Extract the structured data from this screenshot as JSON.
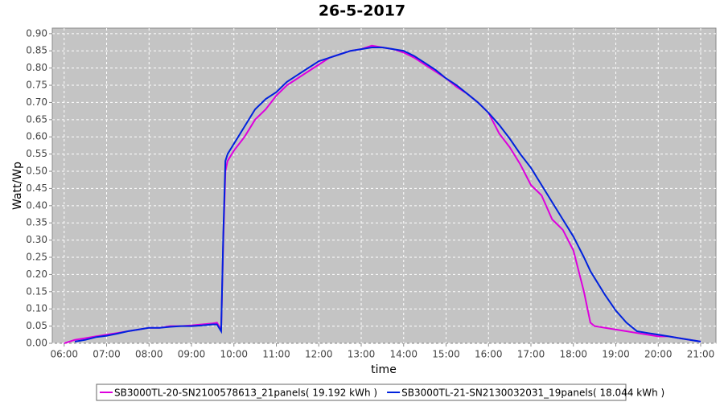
{
  "chart_data": {
    "type": "line",
    "title": "26-5-2017",
    "x_label": "time",
    "y_label": "Watt/Wp",
    "x": [
      6.0,
      6.25,
      6.5,
      6.75,
      7.0,
      7.25,
      7.5,
      7.75,
      8.0,
      8.25,
      8.5,
      8.75,
      9.0,
      9.25,
      9.5,
      9.6,
      9.7,
      9.75,
      9.8,
      9.85,
      10.0,
      10.25,
      10.5,
      10.75,
      11.0,
      11.25,
      11.5,
      11.75,
      12.0,
      12.25,
      12.5,
      12.75,
      13.0,
      13.25,
      13.5,
      13.75,
      14.0,
      14.25,
      14.5,
      14.75,
      15.0,
      15.25,
      15.5,
      15.75,
      16.0,
      16.25,
      16.5,
      16.75,
      17.0,
      17.25,
      17.5,
      17.75,
      18.0,
      18.25,
      18.4,
      18.5,
      18.75,
      19.0,
      19.25,
      19.5,
      19.75,
      20.0,
      20.25,
      20.5,
      20.75,
      21.0
    ],
    "series": [
      {
        "name": "SB3000TL-20-SN2100578613_21panels( 19.192 kWh )",
        "color": "#dd00dd",
        "values": [
          0.0,
          0.01,
          0.015,
          0.02,
          0.025,
          0.03,
          0.035,
          0.04,
          0.045,
          0.045,
          0.05,
          0.05,
          0.052,
          0.055,
          0.058,
          0.06,
          0.04,
          0.3,
          0.5,
          0.53,
          0.56,
          0.6,
          0.65,
          0.68,
          0.72,
          0.75,
          0.77,
          0.79,
          0.81,
          0.83,
          0.84,
          0.85,
          0.855,
          0.865,
          0.86,
          0.855,
          0.845,
          0.83,
          0.81,
          0.79,
          0.77,
          0.745,
          0.725,
          0.7,
          0.67,
          0.61,
          0.57,
          0.52,
          0.46,
          0.43,
          0.36,
          0.33,
          0.27,
          0.15,
          0.06,
          0.05,
          0.045,
          0.04,
          0.035,
          0.03,
          0.025,
          0.02,
          0.02,
          0.015,
          0.01,
          0.005
        ]
      },
      {
        "name": "SB3000TL-21-SN2130032031_19panels( 18.044 kWh )",
        "color": "#0022dd",
        "values": [
          null,
          0.005,
          0.01,
          0.018,
          0.022,
          0.028,
          0.035,
          0.04,
          0.045,
          0.045,
          0.048,
          0.05,
          0.05,
          0.052,
          0.055,
          0.055,
          0.035,
          0.32,
          0.53,
          0.55,
          0.58,
          0.63,
          0.68,
          0.71,
          0.73,
          0.76,
          0.78,
          0.8,
          0.82,
          0.83,
          0.84,
          0.85,
          0.855,
          0.86,
          0.86,
          0.855,
          0.85,
          0.835,
          0.815,
          0.795,
          0.77,
          0.75,
          0.725,
          0.7,
          0.67,
          0.635,
          0.595,
          0.55,
          0.51,
          0.46,
          0.41,
          0.36,
          0.31,
          0.25,
          0.21,
          0.19,
          0.14,
          0.095,
          0.06,
          0.035,
          0.03,
          0.025,
          0.02,
          0.015,
          0.01,
          0.005
        ]
      }
    ],
    "xlim": [
      5.72,
      21.36
    ],
    "ylim": [
      0,
      0.916
    ],
    "grid": true,
    "xticks": [
      {
        "value": 6,
        "label": "06:00"
      },
      {
        "value": 7,
        "label": "07:00"
      },
      {
        "value": 8,
        "label": "08:00"
      },
      {
        "value": 9,
        "label": "09:00"
      },
      {
        "value": 10,
        "label": "10:00"
      },
      {
        "value": 11,
        "label": "11:00"
      },
      {
        "value": 12,
        "label": "12:00"
      },
      {
        "value": 13,
        "label": "13:00"
      },
      {
        "value": 14,
        "label": "14:00"
      },
      {
        "value": 15,
        "label": "15:00"
      },
      {
        "value": 16,
        "label": "16:00"
      },
      {
        "value": 17,
        "label": "17:00"
      },
      {
        "value": 18,
        "label": "18:00"
      },
      {
        "value": 19,
        "label": "19:00"
      },
      {
        "value": 20,
        "label": "20:00"
      },
      {
        "value": 21,
        "label": "21:00"
      }
    ],
    "yticks": [
      {
        "value": 0,
        "label": "0.00"
      },
      {
        "value": 0.05,
        "label": "0.05"
      },
      {
        "value": 0.1,
        "label": "0.10"
      },
      {
        "value": 0.15,
        "label": "0.15"
      },
      {
        "value": 0.2,
        "label": "0.20"
      },
      {
        "value": 0.25,
        "label": "0.25"
      },
      {
        "value": 0.3,
        "label": "0.30"
      },
      {
        "value": 0.35,
        "label": "0.35"
      },
      {
        "value": 0.4,
        "label": "0.40"
      },
      {
        "value": 0.45,
        "label": "0.45"
      },
      {
        "value": 0.5,
        "label": "0.50"
      },
      {
        "value": 0.55,
        "label": "0.55"
      },
      {
        "value": 0.6,
        "label": "0.60"
      },
      {
        "value": 0.65,
        "label": "0.65"
      },
      {
        "value": 0.7,
        "label": "0.70"
      },
      {
        "value": 0.75,
        "label": "0.75"
      },
      {
        "value": 0.8,
        "label": "0.80"
      },
      {
        "value": 0.85,
        "label": "0.85"
      },
      {
        "value": 0.9,
        "label": "0.90"
      }
    ],
    "legend_position": "bottom"
  }
}
